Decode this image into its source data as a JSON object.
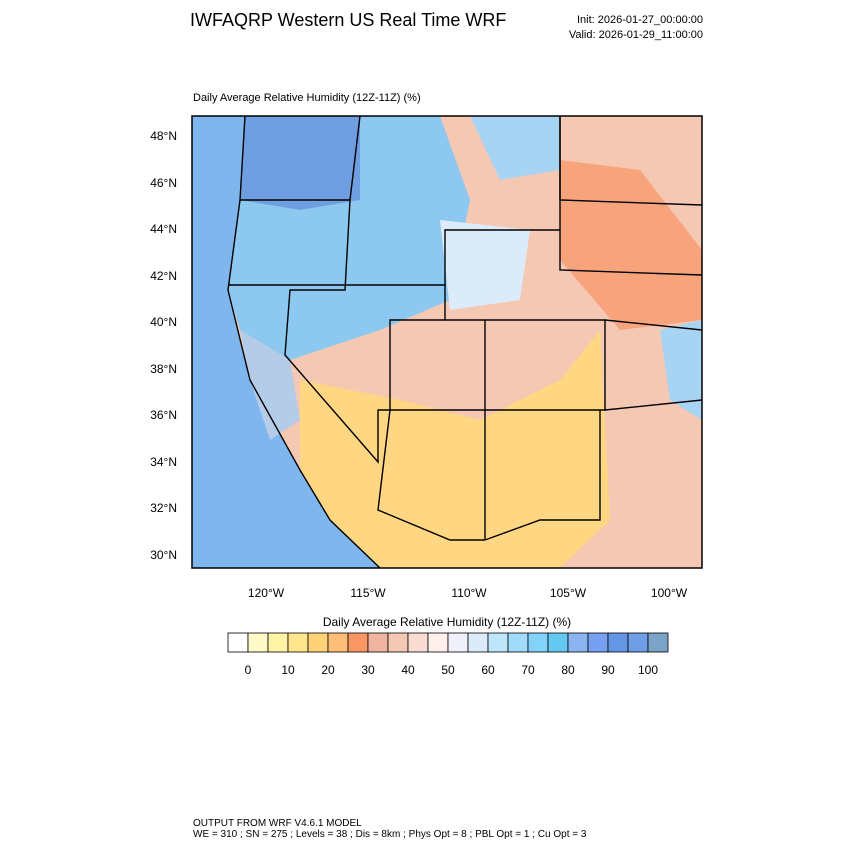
{
  "header": {
    "title": "IWFAQRP Western US Real Time WRF",
    "init": "Init: 2026-01-27_00:00:00",
    "valid": "Valid: 2026-01-29_11:00:00"
  },
  "map": {
    "title": "Daily Average Relative Humidity (12Z-11Z)   (%)",
    "lat_labels": [
      "48°N",
      "46°N",
      "44°N",
      "42°N",
      "40°N",
      "38°N",
      "36°N",
      "34°N",
      "32°N",
      "30°N"
    ],
    "lon_labels": [
      "120°W",
      "115°W",
      "110°W",
      "105°W",
      "100°W"
    ]
  },
  "colorbar": {
    "title": "Daily Average Relative Humidity (12Z-11Z)  (%)",
    "colors": [
      "#ffffff",
      "#fffac8",
      "#fff3a6",
      "#ffe68c",
      "#ffd278",
      "#ffbe78",
      "#fa9664",
      "#f0b4a0",
      "#f5c8b4",
      "#fadcd2",
      "#fff0eb",
      "#f0f0fa",
      "#dcebfa",
      "#bee6fa",
      "#a0dcfa",
      "#82d2fa",
      "#64c8f0",
      "#8cb4f0",
      "#78a0f0",
      "#6496e6",
      "#6e9ee6",
      "#7ca4c8"
    ],
    "labels": [
      0,
      10,
      20,
      30,
      40,
      50,
      60,
      70,
      80,
      90,
      100
    ]
  },
  "footer": {
    "line1": "OUTPUT FROM WRF V4.6.1 MODEL",
    "line2": "WE = 310 ; SN = 275 ; Levels = 38 ; Dis = 8km ; Phys Opt = 8 ; PBL Opt = 1 ; Cu Opt = 3"
  }
}
